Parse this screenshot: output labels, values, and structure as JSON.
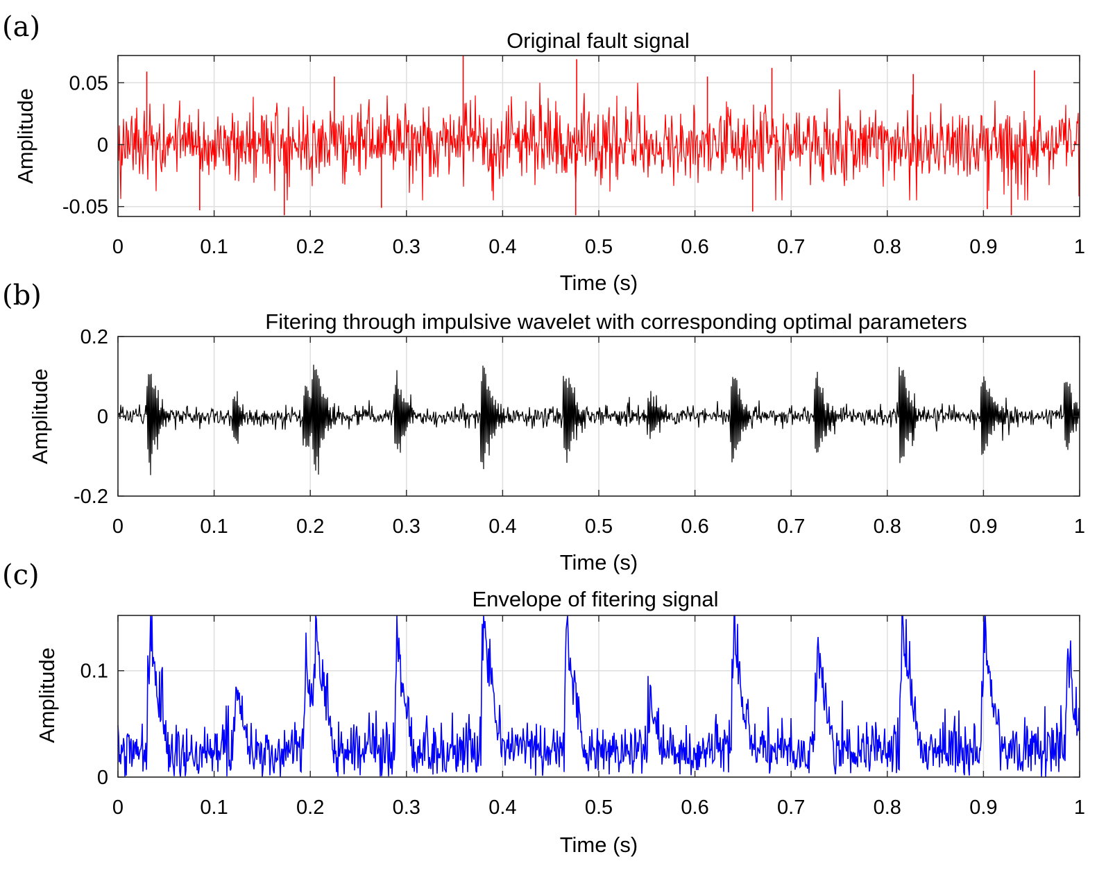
{
  "chart_data": [
    {
      "type": "line",
      "panel_label": "(a)",
      "title": "Original fault signal",
      "xlabel": "Time (s)",
      "ylabel": "Amplitude",
      "xlim": [
        0,
        1
      ],
      "ylim": [
        -0.058,
        0.072
      ],
      "xticks": [
        0,
        0.1,
        0.2,
        0.3,
        0.4,
        0.5,
        0.6,
        0.7,
        0.8,
        0.9,
        1
      ],
      "xtick_labels": [
        "0",
        "0.1",
        "0.2",
        "0.3",
        "0.4",
        "0.5",
        "0.6",
        "0.7",
        "0.8",
        "0.9",
        "1"
      ],
      "yticks": [
        -0.05,
        0,
        0.05
      ],
      "ytick_labels": [
        "-0.05",
        "0",
        "0.05"
      ],
      "grid": true,
      "color": "#ff0000",
      "series": [
        {
          "style": "broadband noise with random spikes",
          "amplitude": 0.015,
          "spikes": [
            {
              "x": 0.03,
              "y": 0.059
            },
            {
              "x": 0.085,
              "y": -0.053
            },
            {
              "x": 0.173,
              "y": -0.057
            },
            {
              "x": 0.225,
              "y": 0.055
            },
            {
              "x": 0.274,
              "y": -0.051
            },
            {
              "x": 0.359,
              "y": 0.072
            },
            {
              "x": 0.476,
              "y": -0.057
            },
            {
              "x": 0.477,
              "y": 0.069
            },
            {
              "x": 0.613,
              "y": 0.055
            },
            {
              "x": 0.66,
              "y": -0.054
            },
            {
              "x": 0.68,
              "y": 0.062
            },
            {
              "x": 0.827,
              "y": 0.057
            },
            {
              "x": 0.904,
              "y": -0.052
            },
            {
              "x": 0.929,
              "y": -0.057
            },
            {
              "x": 0.953,
              "y": 0.06
            }
          ]
        }
      ]
    },
    {
      "type": "line",
      "panel_label": "(b)",
      "title": "Fitering through impulsive wavelet with corresponding optimal parameters",
      "xlabel": "Time (s)",
      "ylabel": "Amplitude",
      "xlim": [
        0,
        1
      ],
      "ylim": [
        -0.2,
        0.2
      ],
      "xticks": [
        0,
        0.1,
        0.2,
        0.3,
        0.4,
        0.5,
        0.6,
        0.7,
        0.8,
        0.9,
        1
      ],
      "xtick_labels": [
        "0",
        "0.1",
        "0.2",
        "0.3",
        "0.4",
        "0.5",
        "0.6",
        "0.7",
        "0.8",
        "0.9",
        "1"
      ],
      "yticks": [
        -0.2,
        0,
        0.2
      ],
      "ytick_labels": [
        "-0.2",
        "0",
        "0.2"
      ],
      "grid": true,
      "color": "#000000",
      "series": [
        {
          "style": "impulsive oscillation bursts",
          "background_amplitude": 0.012,
          "impulses": [
            {
              "t": 0.033,
              "peak": 0.13
            },
            {
              "t": 0.122,
              "peak": 0.07
            },
            {
              "t": 0.195,
              "peak": 0.1
            },
            {
              "t": 0.205,
              "peak": 0.15
            },
            {
              "t": 0.29,
              "peak": 0.11
            },
            {
              "t": 0.38,
              "peak": 0.145
            },
            {
              "t": 0.466,
              "peak": 0.13
            },
            {
              "t": 0.553,
              "peak": 0.06
            },
            {
              "t": 0.64,
              "peak": 0.125
            },
            {
              "t": 0.727,
              "peak": 0.11
            },
            {
              "t": 0.815,
              "peak": 0.14
            },
            {
              "t": 0.9,
              "peak": 0.12
            },
            {
              "t": 0.987,
              "peak": 0.095
            }
          ]
        }
      ]
    },
    {
      "type": "line",
      "panel_label": "(c)",
      "title": "Envelope of fitering signal",
      "xlabel": "Time (s)",
      "ylabel": "Amplitude",
      "xlim": [
        0,
        1
      ],
      "ylim": [
        0,
        0.152
      ],
      "xticks": [
        0,
        0.1,
        0.2,
        0.3,
        0.4,
        0.5,
        0.6,
        0.7,
        0.8,
        0.9,
        1
      ],
      "xtick_labels": [
        "0",
        "0.1",
        "0.2",
        "0.3",
        "0.4",
        "0.5",
        "0.6",
        "0.7",
        "0.8",
        "0.9",
        "1"
      ],
      "yticks": [
        0,
        0.1
      ],
      "ytick_labels": [
        "0",
        "0.1"
      ],
      "grid": true,
      "color": "#0000ff",
      "series": [
        {
          "style": "envelope peaks with noise floor",
          "baseline": 0.025,
          "peaks": [
            {
              "t": 0.033,
              "peak": 0.135
            },
            {
              "t": 0.122,
              "peak": 0.08
            },
            {
              "t": 0.195,
              "peak": 0.104
            },
            {
              "t": 0.205,
              "peak": 0.152
            },
            {
              "t": 0.29,
              "peak": 0.12
            },
            {
              "t": 0.38,
              "peak": 0.148
            },
            {
              "t": 0.466,
              "peak": 0.137
            },
            {
              "t": 0.553,
              "peak": 0.07
            },
            {
              "t": 0.64,
              "peak": 0.142
            },
            {
              "t": 0.727,
              "peak": 0.125
            },
            {
              "t": 0.815,
              "peak": 0.15
            },
            {
              "t": 0.9,
              "peak": 0.135
            },
            {
              "t": 0.987,
              "peak": 0.1
            }
          ]
        }
      ]
    }
  ]
}
